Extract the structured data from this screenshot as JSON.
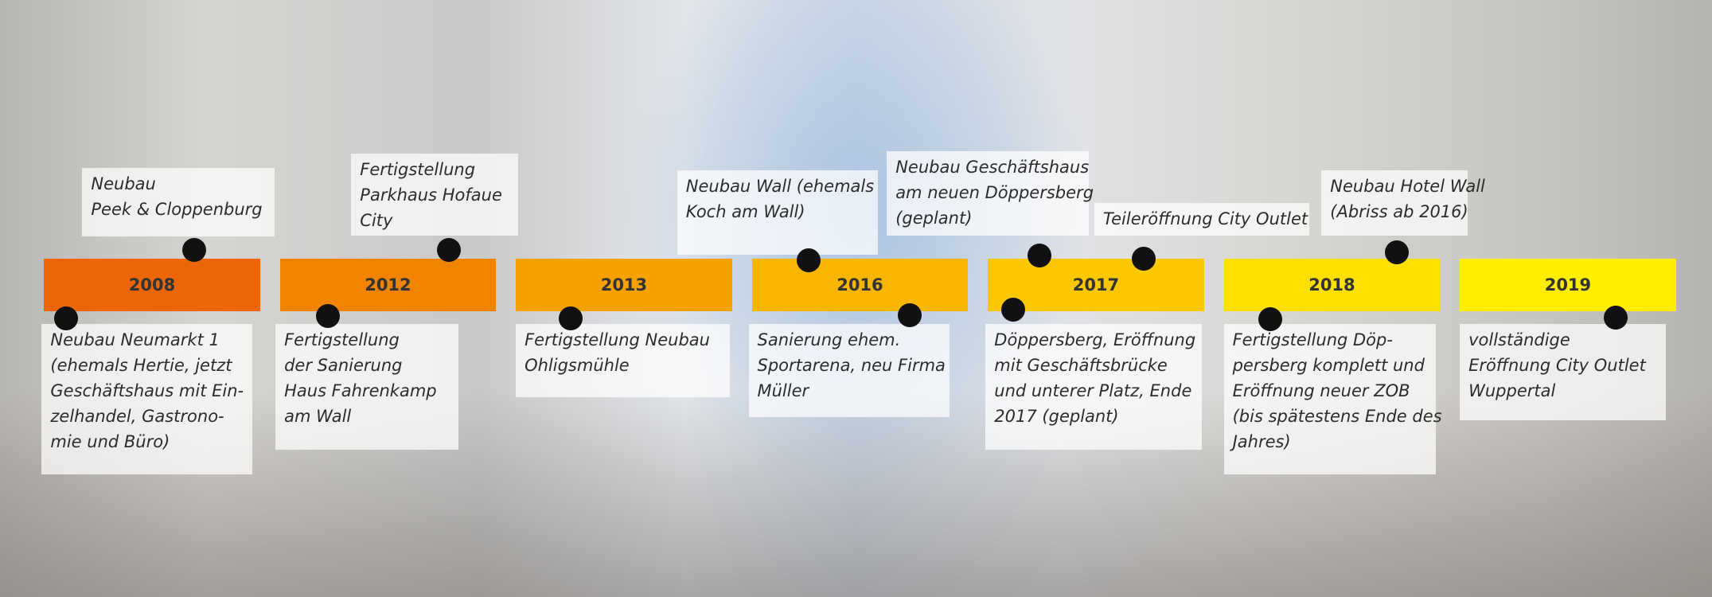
{
  "years": [
    {
      "label": "2008",
      "color": "#ec6608"
    },
    {
      "label": "2012",
      "color": "#f08400"
    },
    {
      "label": "2013",
      "color": "#f5a200"
    },
    {
      "label": "2016",
      "color": "#f8b600"
    },
    {
      "label": "2017",
      "color": "#fbc800"
    },
    {
      "label": "2018",
      "color": "#fde000"
    },
    {
      "label": "2019",
      "color": "#ffee00"
    }
  ],
  "events": [
    {
      "lines": [
        "Neubau",
        "Peek & Cloppenburg"
      ]
    },
    {
      "lines": [
        "Fertigstellung",
        "Parkhaus Hofaue",
        "City"
      ]
    },
    {
      "lines": [
        "Neubau Wall (ehemals",
        "Koch am Wall)"
      ]
    },
    {
      "lines": [
        "Neubau Geschäftshaus",
        "am neuen Döppersberg",
        "(geplant)"
      ]
    },
    {
      "lines": [
        "Teileröffnung City Outlet"
      ]
    },
    {
      "lines": [
        "Neubau Hotel Wall",
        "(Abriss ab 2016)"
      ]
    },
    {
      "lines": [
        "Neubau Neumarkt 1",
        "(ehemals Hertie, jetzt",
        "Geschäftshaus mit Ein-",
        "zelhandel, Gastrono-",
        "mie und Büro)"
      ]
    },
    {
      "lines": [
        "Fertigstellung",
        "der Sanierung",
        "Haus Fahrenkamp",
        "am Wall"
      ]
    },
    {
      "lines": [
        "Fertigstellung Neubau",
        "Ohligsmühle"
      ]
    },
    {
      "lines": [
        "Sanierung ehem.",
        "Sportarena, neu Firma",
        "Müller"
      ]
    },
    {
      "lines": [
        "Döppersberg, Eröffnung",
        "mit Geschäftsbrücke",
        "und unterer Platz, Ende",
        "2017 (geplant)"
      ]
    },
    {
      "lines": [
        "Fertigstellung Döp-",
        "persberg komplett und",
        "Eröffnung neuer ZOB",
        "(bis spätestens Ende des",
        "Jahres)"
      ]
    },
    {
      "lines": [
        "vollständige",
        "Eröffnung City Outlet",
        "Wuppertal"
      ]
    }
  ]
}
